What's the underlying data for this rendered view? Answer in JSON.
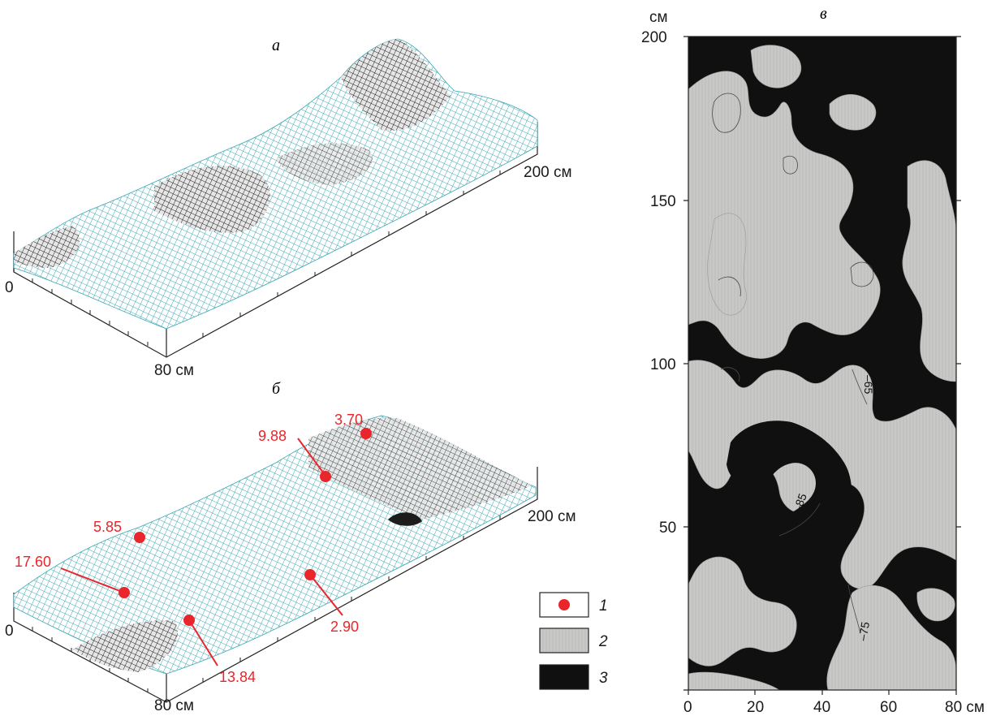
{
  "colors": {
    "mesh_teal": "#3aa7b3",
    "mesh_dark": "#1c1c1c",
    "point_red": "#e8262c",
    "light_zone": "#c8c9c6",
    "dark_zone": "#101010"
  },
  "panel_a": {
    "letter": "а",
    "label_length": "200 см",
    "label_origin": "0",
    "label_width": "80 см"
  },
  "panel_b": {
    "letter": "б",
    "label_length": "200 см",
    "label_origin": "0",
    "label_width": "80 см",
    "points": [
      "3.70",
      "9.88",
      "5.85",
      "17.60",
      "2.90",
      "13.84"
    ]
  },
  "legend": {
    "items": [
      {
        "num": "1",
        "swatch": "red-point"
      },
      {
        "num": "2",
        "swatch": "light-zone"
      },
      {
        "num": "3",
        "swatch": "dark-zone"
      }
    ]
  },
  "panel_v": {
    "letter": "в",
    "y_unit": "см",
    "y_ticks": [
      "200",
      "150",
      "100",
      "50"
    ],
    "x_ticks": [
      "0",
      "20",
      "40",
      "60",
      "80 см"
    ],
    "contour_labels": [
      "–65",
      "–85",
      "–75"
    ]
  }
}
